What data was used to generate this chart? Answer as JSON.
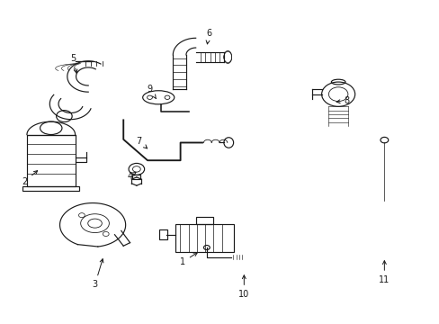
{
  "background_color": "#ffffff",
  "line_color": "#1a1a1a",
  "fig_width": 4.89,
  "fig_height": 3.6,
  "dpi": 100,
  "label_positions": {
    "1": [
      0.415,
      0.19,
      0.455,
      0.225
    ],
    "2": [
      0.055,
      0.44,
      0.09,
      0.48
    ],
    "3": [
      0.215,
      0.12,
      0.235,
      0.21
    ],
    "4": [
      0.295,
      0.455,
      0.31,
      0.47
    ],
    "5": [
      0.165,
      0.82,
      0.175,
      0.765
    ],
    "6": [
      0.475,
      0.9,
      0.47,
      0.855
    ],
    "7": [
      0.315,
      0.565,
      0.34,
      0.535
    ],
    "8": [
      0.79,
      0.69,
      0.758,
      0.685
    ],
    "9": [
      0.34,
      0.725,
      0.355,
      0.695
    ],
    "10": [
      0.555,
      0.09,
      0.555,
      0.16
    ],
    "11": [
      0.875,
      0.135,
      0.875,
      0.205
    ]
  }
}
